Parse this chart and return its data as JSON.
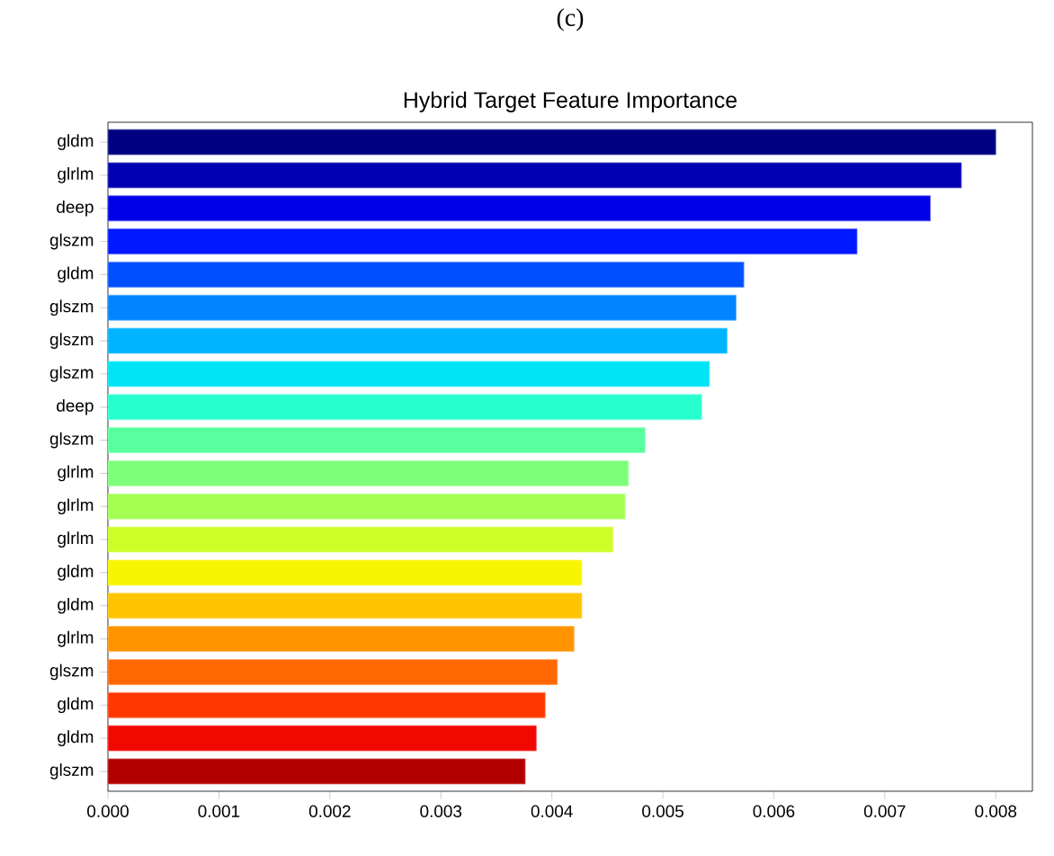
{
  "chart_data": {
    "type": "bar",
    "orientation": "horizontal",
    "title": "Hybrid Target Feature Importance",
    "annotations": [
      "(c)"
    ],
    "categories": [
      "gldm",
      "glrlm",
      "deep",
      "glszm",
      "gldm",
      "glszm",
      "glszm",
      "glszm",
      "deep",
      "glszm",
      "glrlm",
      "glrlm",
      "glrlm",
      "gldm",
      "gldm",
      "glrlm",
      "glszm",
      "gldm",
      "gldm",
      "glszm"
    ],
    "values": [
      0.008,
      0.00769,
      0.00741,
      0.00675,
      0.00573,
      0.00566,
      0.00558,
      0.00542,
      0.00535,
      0.00484,
      0.00469,
      0.00466,
      0.00455,
      0.00427,
      0.00427,
      0.0042,
      0.00405,
      0.00394,
      0.00386,
      0.00376
    ],
    "colors": [
      "#000080",
      "#0000b2",
      "#0000e8",
      "#0018ff",
      "#0050ff",
      "#0084ff",
      "#00b4ff",
      "#00e4f8",
      "#28ffce",
      "#58ff9e",
      "#7dff7a",
      "#a4ff53",
      "#cefe28",
      "#f8f500",
      "#ffc400",
      "#ff9400",
      "#ff6800",
      "#ff3800",
      "#f10800",
      "#b20000"
    ],
    "xlim": [
      0,
      0.00833
    ],
    "xticks": [
      {
        "value": 0,
        "label": "0.000"
      },
      {
        "value": 0.001,
        "label": "0.001"
      },
      {
        "value": 0.002,
        "label": "0.002"
      },
      {
        "value": 0.003,
        "label": "0.003"
      },
      {
        "value": 0.004,
        "label": "0.004"
      },
      {
        "value": 0.005,
        "label": "0.005"
      },
      {
        "value": 0.006,
        "label": "0.006"
      },
      {
        "value": 0.007,
        "label": "0.007"
      },
      {
        "value": 0.008,
        "label": "0.008"
      }
    ],
    "grid": false
  }
}
